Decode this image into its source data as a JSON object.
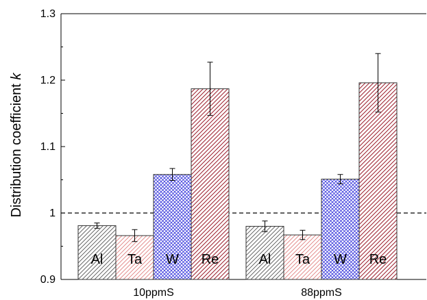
{
  "chart_data": {
    "type": "bar",
    "ylabel": "Distribution coefficient",
    "ylabel_italic": "k",
    "ylim": [
      0.9,
      1.3
    ],
    "yticks": [
      "0.9",
      "1",
      "1.1",
      "1.2",
      "1.3"
    ],
    "categories": [
      "10ppmS",
      "88ppmS"
    ],
    "reference_line": {
      "y": 1.0,
      "style": "dashed"
    },
    "series": [
      {
        "name": "Al",
        "color": "#b8b8b8",
        "hatch": "diagonal",
        "values": [
          0.981,
          0.98
        ],
        "errors": [
          0.004,
          0.008
        ]
      },
      {
        "name": "Ta",
        "color": "#e98f8f",
        "hatch": "diagonal",
        "values": [
          0.966,
          0.967
        ],
        "errors": [
          0.009,
          0.007
        ]
      },
      {
        "name": "W",
        "color": "#4848e6",
        "hatch": "crosshatch",
        "values": [
          1.058,
          1.051
        ],
        "errors": [
          0.009,
          0.007
        ]
      },
      {
        "name": "Re",
        "color": "#a01c2a",
        "hatch": "diagonal",
        "values": [
          1.187,
          1.196
        ],
        "errors": [
          0.04,
          0.044
        ]
      }
    ]
  }
}
